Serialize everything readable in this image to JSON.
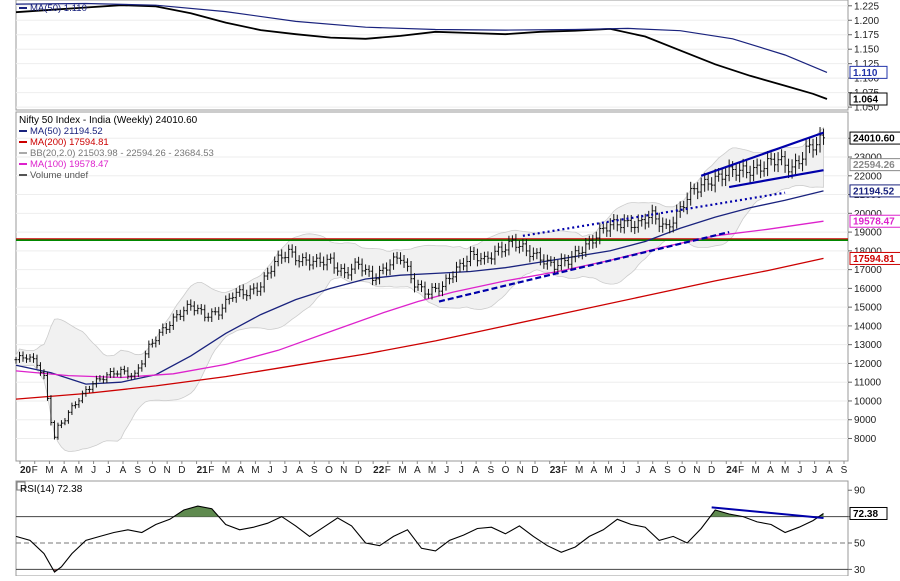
{
  "chart_data": [
    {
      "panel": "top",
      "type": "line",
      "legend": [
        {
          "text": "MA(50) 1.110",
          "color": "#1a237e"
        }
      ],
      "y_ticks": [
        1.225,
        1.2,
        1.175,
        1.15,
        1.125,
        1.1,
        1.075,
        1.05
      ],
      "ylim": [
        1.045,
        1.235
      ],
      "flags": [
        {
          "text": "1.110",
          "value": 1.11,
          "color": "#2233aa"
        },
        {
          "text": "1.064",
          "value": 1.064,
          "color": "#000000"
        }
      ],
      "x_range": [
        0,
        238
      ],
      "series": [
        {
          "name": "price",
          "color": "#000000",
          "points": [
            [
              0,
              1.214
            ],
            [
              10,
              1.218
            ],
            [
              20,
              1.222
            ],
            [
              30,
              1.226
            ],
            [
              40,
              1.224
            ],
            [
              50,
              1.212
            ],
            [
              60,
              1.196
            ],
            [
              70,
              1.183
            ],
            [
              80,
              1.176
            ],
            [
              90,
              1.17
            ],
            [
              100,
              1.168
            ],
            [
              110,
              1.173
            ],
            [
              120,
              1.18
            ],
            [
              130,
              1.178
            ],
            [
              140,
              1.176
            ],
            [
              150,
              1.18
            ],
            [
              160,
              1.182
            ],
            [
              170,
              1.185
            ],
            [
              180,
              1.172
            ],
            [
              190,
              1.148
            ],
            [
              200,
              1.124
            ],
            [
              210,
              1.104
            ],
            [
              220,
              1.087
            ],
            [
              228,
              1.073
            ],
            [
              232,
              1.064
            ]
          ]
        },
        {
          "name": "MA(50)",
          "color": "#1a237e",
          "points": [
            [
              0,
              1.228
            ],
            [
              20,
              1.229
            ],
            [
              40,
              1.226
            ],
            [
              60,
              1.215
            ],
            [
              80,
              1.198
            ],
            [
              100,
              1.188
            ],
            [
              120,
              1.184
            ],
            [
              140,
              1.183
            ],
            [
              160,
              1.184
            ],
            [
              175,
              1.186
            ],
            [
              190,
              1.182
            ],
            [
              205,
              1.168
            ],
            [
              220,
              1.14
            ],
            [
              232,
              1.11
            ]
          ]
        }
      ]
    },
    {
      "panel": "main",
      "type": "ohlc",
      "title": "Nifty 50 Index - India (Weekly) 24010.60",
      "legend": [
        {
          "text": "MA(50) 21194.52",
          "color": "#1a237e"
        },
        {
          "text": "MA(200) 17594.81",
          "color": "#cc0000"
        },
        {
          "text": "BB(20,2.0) 21503.98 - 22594.26 - 23684.53",
          "color": "#aaaaaa"
        },
        {
          "text": "MA(100) 19578.47",
          "color": "#dd22cc"
        },
        {
          "text": "Volume undef",
          "color": "#555555"
        }
      ],
      "y_ticks": [
        24000,
        23000,
        22000,
        21000,
        20000,
        19000,
        18000,
        17000,
        16000,
        15000,
        14000,
        13000,
        12000,
        11000,
        10000,
        9000,
        8000
      ],
      "ylim": [
        6800,
        25400
      ],
      "flags": [
        {
          "text": "24010.60",
          "value": 24010.6,
          "color": "#000000"
        },
        {
          "text": "22594.26",
          "value": 22594.26,
          "color": "#888888"
        },
        {
          "text": "21194.52",
          "value": 21194.52,
          "color": "#1a237e"
        },
        {
          "text": "19578.47",
          "value": 19578.47,
          "color": "#dd22cc"
        },
        {
          "text": "17594.81",
          "value": 17594.81,
          "color": "#cc0000"
        }
      ],
      "x_axis": {
        "labels": [
          "20",
          "F",
          "M",
          "A",
          "M",
          "J",
          "J",
          "A",
          "S",
          "O",
          "N",
          "D",
          "21",
          "F",
          "M",
          "A",
          "M",
          "J",
          "J",
          "A",
          "S",
          "O",
          "N",
          "D",
          "22",
          "F",
          "M",
          "A",
          "M",
          "J",
          "J",
          "A",
          "S",
          "O",
          "N",
          "D",
          "23",
          "F",
          "M",
          "A",
          "M",
          "J",
          "J",
          "A",
          "S",
          "O",
          "N",
          "D",
          "24",
          "F",
          "M",
          "A",
          "M",
          "J",
          "J",
          "A",
          "S"
        ],
        "year_labels": [
          "20",
          "21",
          "22",
          "23",
          "24"
        ]
      },
      "x_range": [
        0,
        238
      ],
      "close_anchors": [
        [
          0,
          12200
        ],
        [
          3,
          12300
        ],
        [
          6,
          12000
        ],
        [
          8,
          11300
        ],
        [
          10,
          9000
        ],
        [
          11,
          8100
        ],
        [
          12,
          8600
        ],
        [
          14,
          9000
        ],
        [
          16,
          9600
        ],
        [
          18,
          10100
        ],
        [
          20,
          10600
        ],
        [
          22,
          11000
        ],
        [
          26,
          11300
        ],
        [
          30,
          11600
        ],
        [
          34,
          11400
        ],
        [
          38,
          12800
        ],
        [
          42,
          13800
        ],
        [
          46,
          14600
        ],
        [
          50,
          15000
        ],
        [
          54,
          14600
        ],
        [
          58,
          14800
        ],
        [
          62,
          15600
        ],
        [
          66,
          15800
        ],
        [
          70,
          16200
        ],
        [
          74,
          17300
        ],
        [
          78,
          18000
        ],
        [
          82,
          17500
        ],
        [
          86,
          17300
        ],
        [
          90,
          17500
        ],
        [
          94,
          16800
        ],
        [
          98,
          17200
        ],
        [
          102,
          16600
        ],
        [
          106,
          17200
        ],
        [
          110,
          17600
        ],
        [
          114,
          16300
        ],
        [
          118,
          15800
        ],
        [
          122,
          16000
        ],
        [
          126,
          17100
        ],
        [
          130,
          17800
        ],
        [
          134,
          17400
        ],
        [
          138,
          18100
        ],
        [
          142,
          18500
        ],
        [
          146,
          17900
        ],
        [
          150,
          17700
        ],
        [
          154,
          17200
        ],
        [
          158,
          17400
        ],
        [
          162,
          18200
        ],
        [
          166,
          18800
        ],
        [
          170,
          19300
        ],
        [
          174,
          19600
        ],
        [
          178,
          19400
        ],
        [
          182,
          19800
        ],
        [
          186,
          19300
        ],
        [
          190,
          20200
        ],
        [
          194,
          21200
        ],
        [
          198,
          21800
        ],
        [
          202,
          22000
        ],
        [
          206,
          22200
        ],
        [
          210,
          22400
        ],
        [
          214,
          22500
        ],
        [
          218,
          22800
        ],
        [
          222,
          22500
        ],
        [
          226,
          23300
        ],
        [
          229,
          23600
        ],
        [
          231,
          24010
        ]
      ],
      "series": [
        {
          "name": "MA(50)",
          "color": "#1a237e",
          "points": [
            [
              0,
              11900
            ],
            [
              10,
              11500
            ],
            [
              20,
              10900
            ],
            [
              30,
              11000
            ],
            [
              40,
              11400
            ],
            [
              50,
              12400
            ],
            [
              60,
              13600
            ],
            [
              70,
              14600
            ],
            [
              80,
              15400
            ],
            [
              90,
              16000
            ],
            [
              100,
              16500
            ],
            [
              110,
              16700
            ],
            [
              120,
              16800
            ],
            [
              130,
              16900
            ],
            [
              140,
              17100
            ],
            [
              150,
              17400
            ],
            [
              160,
              17700
            ],
            [
              170,
              18000
            ],
            [
              180,
              18500
            ],
            [
              190,
              19200
            ],
            [
              200,
              19800
            ],
            [
              210,
              20300
            ],
            [
              220,
              20700
            ],
            [
              231,
              21195
            ]
          ]
        },
        {
          "name": "MA(100)",
          "color": "#dd22cc",
          "points": [
            [
              0,
              11600
            ],
            [
              15,
              11350
            ],
            [
              30,
              11250
            ],
            [
              45,
              11450
            ],
            [
              60,
              11950
            ],
            [
              75,
              12700
            ],
            [
              90,
              13700
            ],
            [
              105,
              14700
            ],
            [
              115,
              15300
            ],
            [
              125,
              15800
            ],
            [
              140,
              16400
            ],
            [
              155,
              16900
            ],
            [
              170,
              17500
            ],
            [
              185,
              18200
            ],
            [
              200,
              18800
            ],
            [
              215,
              19150
            ],
            [
              231,
              19578
            ]
          ]
        },
        {
          "name": "MA(200)",
          "color": "#cc0000",
          "points": [
            [
              0,
              10100
            ],
            [
              20,
              10400
            ],
            [
              40,
              10800
            ],
            [
              60,
              11300
            ],
            [
              80,
              11900
            ],
            [
              100,
              12500
            ],
            [
              120,
              13200
            ],
            [
              140,
              14000
            ],
            [
              160,
              14800
            ],
            [
              180,
              15600
            ],
            [
              200,
              16400
            ],
            [
              215,
              16950
            ],
            [
              231,
              17595
            ]
          ]
        }
      ],
      "horizontal_lines": [
        {
          "value": 18600,
          "color": "#cc0000"
        },
        {
          "value": 18600,
          "color": "#008800"
        }
      ],
      "trendlines": [
        {
          "style": "solid",
          "from": [
            196,
            22000
          ],
          "to": [
            231,
            24300
          ],
          "color": "#0000aa"
        },
        {
          "style": "solid",
          "from": [
            204,
            21400
          ],
          "to": [
            231,
            22300
          ],
          "color": "#0000aa"
        },
        {
          "style": "dotted",
          "from": [
            145,
            18800
          ],
          "to": [
            220,
            21100
          ],
          "color": "#0000aa"
        },
        {
          "style": "dashed",
          "from": [
            121,
            15300
          ],
          "to": [
            204,
            19000
          ],
          "color": "#0000aa"
        }
      ]
    },
    {
      "panel": "rsi",
      "type": "line",
      "title": "RSI(14) 72.38",
      "y_ticks": [
        90,
        70,
        50,
        30
      ],
      "ylim": [
        25,
        97
      ],
      "levels": [
        70,
        50,
        30
      ],
      "flags": [
        {
          "text": "72.38",
          "value": 72.38,
          "color": "#000000"
        }
      ],
      "x_range": [
        0,
        238
      ],
      "series": [
        {
          "name": "RSI(14)",
          "color": "#000000",
          "points": [
            [
              0,
              55
            ],
            [
              4,
              52
            ],
            [
              8,
              42
            ],
            [
              11,
              28
            ],
            [
              13,
              32
            ],
            [
              16,
              42
            ],
            [
              20,
              52
            ],
            [
              24,
              55
            ],
            [
              28,
              58
            ],
            [
              32,
              60
            ],
            [
              36,
              58
            ],
            [
              40,
              64
            ],
            [
              44,
              68
            ],
            [
              48,
              75
            ],
            [
              52,
              78
            ],
            [
              56,
              76
            ],
            [
              60,
              64
            ],
            [
              64,
              60
            ],
            [
              68,
              62
            ],
            [
              72,
              65
            ],
            [
              76,
              70
            ],
            [
              80,
              63
            ],
            [
              84,
              55
            ],
            [
              88,
              62
            ],
            [
              92,
              69
            ],
            [
              96,
              63
            ],
            [
              100,
              50
            ],
            [
              104,
              48
            ],
            [
              108,
              55
            ],
            [
              112,
              60
            ],
            [
              116,
              46
            ],
            [
              120,
              44
            ],
            [
              124,
              52
            ],
            [
              128,
              56
            ],
            [
              132,
              61
            ],
            [
              136,
              62
            ],
            [
              140,
              57
            ],
            [
              144,
              63
            ],
            [
              148,
              55
            ],
            [
              152,
              48
            ],
            [
              156,
              43
            ],
            [
              160,
              47
            ],
            [
              164,
              55
            ],
            [
              168,
              60
            ],
            [
              172,
              68
            ],
            [
              176,
              64
            ],
            [
              180,
              62
            ],
            [
              184,
              52
            ],
            [
              188,
              55
            ],
            [
              192,
              50
            ],
            [
              196,
              61
            ],
            [
              200,
              75
            ],
            [
              204,
              72
            ],
            [
              208,
              70
            ],
            [
              212,
              66
            ],
            [
              216,
              64
            ],
            [
              220,
              58
            ],
            [
              224,
              62
            ],
            [
              228,
              67
            ],
            [
              231,
              72.38
            ]
          ]
        }
      ],
      "trendlines": [
        {
          "style": "solid",
          "from": [
            199,
            77
          ],
          "to": [
            231,
            69
          ],
          "color": "#0000aa"
        }
      ]
    }
  ]
}
